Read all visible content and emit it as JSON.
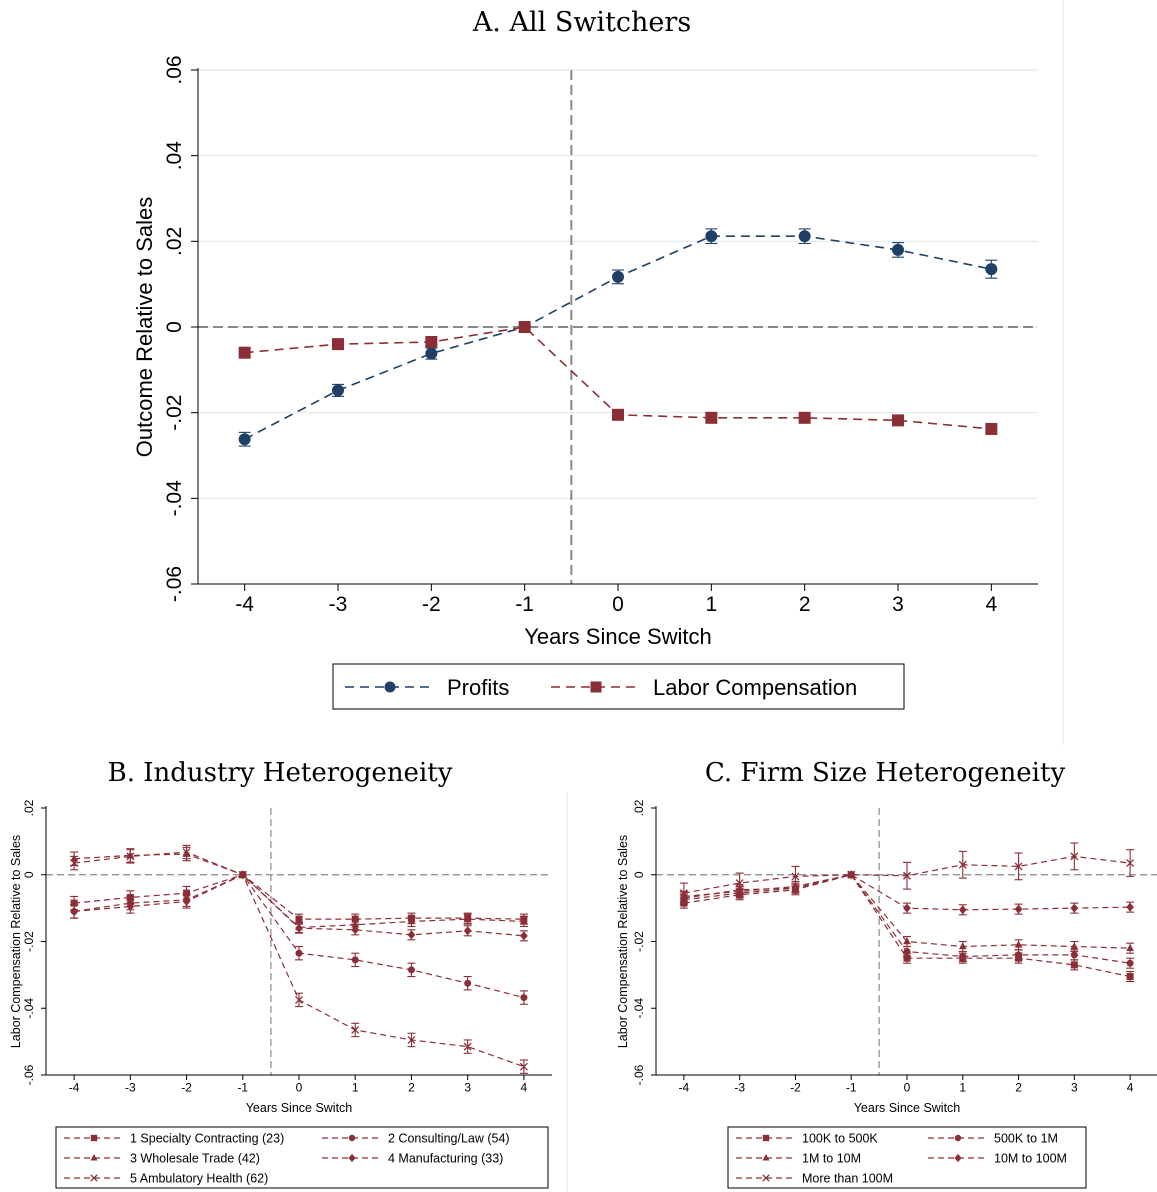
{
  "chart_data": [
    {
      "type": "line",
      "title": "A. All Switchers",
      "xlabel": "Years Since Switch",
      "ylabel": "Outcome Relative to Sales",
      "x": [
        -4,
        -3,
        -2,
        -1,
        0,
        1,
        2,
        3,
        4
      ],
      "xlim": [
        -4.5,
        4.5
      ],
      "ylim": [
        -0.06,
        0.06
      ],
      "yticks": [
        -0.06,
        -0.04,
        -0.02,
        0,
        0.02,
        0.04,
        0.06
      ],
      "ytick_labels": [
        "-.06",
        "-.04",
        "-.02",
        "0",
        ".02",
        ".04",
        ".06"
      ],
      "xtick_labels": [
        "-4",
        "-3",
        "-2",
        "-1",
        "0",
        "1",
        "2",
        "3",
        "4"
      ],
      "vline": -0.5,
      "grid": true,
      "legend_position": "bottom",
      "legend_cols": 2,
      "series": [
        {
          "name": "Profits",
          "marker": "circle",
          "color": "#1f3f66",
          "values": [
            -0.0262,
            -0.0148,
            -0.0062,
            0,
            0.0117,
            0.0212,
            0.0212,
            0.018,
            0.0135
          ],
          "err": [
            0.0016,
            0.0014,
            0.0013,
            0,
            0.0016,
            0.0017,
            0.0017,
            0.0017,
            0.0021
          ]
        },
        {
          "name": "Labor Compensation",
          "marker": "square",
          "color": "#8b2e36",
          "values": [
            -0.006,
            -0.004,
            -0.0035,
            0,
            -0.0205,
            -0.0212,
            -0.0212,
            -0.0218,
            -0.0238
          ],
          "err": [
            0,
            0,
            0,
            0,
            0,
            0,
            0,
            0,
            0
          ]
        }
      ]
    },
    {
      "type": "line",
      "title": "B. Industry Heterogeneity",
      "xlabel": "Years Since Switch",
      "ylabel": "Labor Compensation Relative to Sales",
      "x": [
        -4,
        -3,
        -2,
        -1,
        0,
        1,
        2,
        3,
        4
      ],
      "xlim": [
        -4.5,
        4.5
      ],
      "ylim": [
        -0.06,
        0.02
      ],
      "yticks": [
        -0.06,
        -0.04,
        -0.02,
        0,
        0.02
      ],
      "ytick_labels": [
        "-.06",
        "-.04",
        "-.02",
        "0",
        ".02"
      ],
      "xtick_labels": [
        "-4",
        "-3",
        "-2",
        "-1",
        "0",
        "1",
        "2",
        "3",
        "4"
      ],
      "vline": -0.5,
      "grid": false,
      "legend_position": "bottom",
      "legend_cols": 2,
      "series": [
        {
          "name": "1 Specialty Contracting (23)",
          "marker": "square",
          "color": "#8b2e36",
          "values": [
            -0.0085,
            -0.0068,
            -0.0055,
            0,
            -0.0133,
            -0.0133,
            -0.013,
            -0.013,
            -0.0133
          ],
          "err": [
            0.002,
            0.002,
            0.002,
            0,
            0.0015,
            0.0015,
            0.0015,
            0.0015,
            0.0015
          ]
        },
        {
          "name": "2 Consulting/Law (54)",
          "marker": "circle",
          "color": "#8b2e36",
          "values": [
            -0.011,
            -0.0085,
            -0.0075,
            0,
            -0.0235,
            -0.0255,
            -0.0285,
            -0.0325,
            -0.0368
          ],
          "err": [
            0.002,
            0.002,
            0.002,
            0,
            0.002,
            0.002,
            0.002,
            0.002,
            0.002
          ]
        },
        {
          "name": "3 Wholesale Trade (42)",
          "marker": "triangle",
          "color": "#8b2e36",
          "values": [
            0.0048,
            0.0058,
            0.0062,
            0,
            -0.0158,
            -0.015,
            -0.014,
            -0.0133,
            -0.014
          ],
          "err": [
            0.002,
            0.002,
            0.002,
            0,
            0.0015,
            0.0015,
            0.0015,
            0.0015,
            0.0015
          ]
        },
        {
          "name": "4 Manufacturing (33)",
          "marker": "diamond",
          "color": "#8b2e36",
          "values": [
            -0.011,
            -0.0095,
            -0.008,
            0,
            -0.016,
            -0.0165,
            -0.018,
            -0.0168,
            -0.0183
          ],
          "err": [
            0.002,
            0.002,
            0.002,
            0,
            0.0015,
            0.0015,
            0.0015,
            0.0015,
            0.0015
          ]
        },
        {
          "name": "5 Ambulatory Health (62)",
          "marker": "x",
          "color": "#8b2e36",
          "values": [
            0.0035,
            0.0055,
            0.0068,
            0,
            -0.0375,
            -0.0465,
            -0.0495,
            -0.0515,
            -0.0575
          ],
          "err": [
            0.002,
            0.002,
            0.002,
            0,
            0.002,
            0.002,
            0.002,
            0.002,
            0.002
          ]
        }
      ]
    },
    {
      "type": "line",
      "title": "C. Firm Size Heterogeneity",
      "xlabel": "Years Since Switch",
      "ylabel": "Labor Compensation Relative to Sales",
      "x": [
        -4,
        -3,
        -2,
        -1,
        0,
        1,
        2,
        3,
        4
      ],
      "xlim": [
        -4.5,
        4.5
      ],
      "ylim": [
        -0.06,
        0.02
      ],
      "yticks": [
        -0.06,
        -0.04,
        -0.02,
        0,
        0.02
      ],
      "ytick_labels": [
        "-.06",
        "-.04",
        "-.02",
        "0",
        ".02"
      ],
      "xtick_labels": [
        "-4",
        "-3",
        "-2",
        "-1",
        "0",
        "1",
        "2",
        "3",
        "4"
      ],
      "vline": -0.5,
      "grid": false,
      "legend_position": "bottom",
      "legend_cols": 2,
      "series": [
        {
          "name": "100K to 500K",
          "marker": "square",
          "color": "#8b2e36",
          "values": [
            -0.0085,
            -0.006,
            -0.0045,
            0,
            -0.025,
            -0.025,
            -0.025,
            -0.027,
            -0.0305
          ],
          "err": [
            0.0015,
            0.0015,
            0.0015,
            0,
            0.0015,
            0.0015,
            0.0015,
            0.0015,
            0.0015
          ]
        },
        {
          "name": "500K to 1M",
          "marker": "circle",
          "color": "#8b2e36",
          "values": [
            -0.0075,
            -0.0055,
            -0.004,
            0,
            -0.023,
            -0.0245,
            -0.024,
            -0.024,
            -0.0265
          ],
          "err": [
            0.0015,
            0.0015,
            0.0015,
            0,
            0.0015,
            0.0015,
            0.0015,
            0.0015,
            0.0015
          ]
        },
        {
          "name": "1M to 10M",
          "marker": "triangle",
          "color": "#8b2e36",
          "values": [
            -0.0065,
            -0.005,
            -0.0035,
            0,
            -0.02,
            -0.0215,
            -0.021,
            -0.0215,
            -0.022
          ],
          "err": [
            0.0015,
            0.0015,
            0.0015,
            0,
            0.0015,
            0.0015,
            0.0015,
            0.0015,
            0.0015
          ]
        },
        {
          "name": "10M to 100M",
          "marker": "diamond",
          "color": "#8b2e36",
          "values": [
            -0.007,
            -0.0045,
            -0.004,
            0,
            -0.01,
            -0.0105,
            -0.0103,
            -0.01,
            -0.0097
          ],
          "err": [
            0.0015,
            0.0015,
            0.0015,
            0,
            0.0015,
            0.0015,
            0.0015,
            0.0015,
            0.0015
          ]
        },
        {
          "name": "More than 100M",
          "marker": "x",
          "color": "#8b2e36",
          "values": [
            -0.0055,
            -0.0025,
            -0.0005,
            0,
            -0.0003,
            0.003,
            0.0025,
            0.0055,
            0.0035
          ],
          "err": [
            0.003,
            0.003,
            0.003,
            0,
            0.004,
            0.004,
            0.004,
            0.004,
            0.004
          ]
        }
      ]
    }
  ]
}
